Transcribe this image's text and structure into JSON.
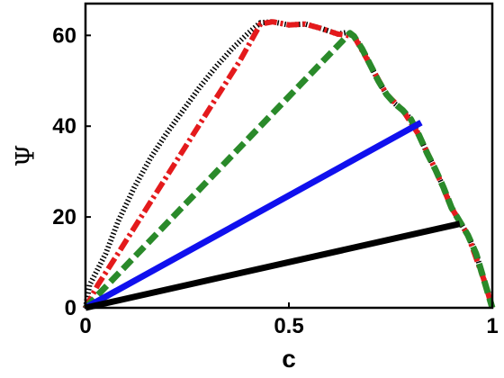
{
  "chart_data": {
    "type": "line",
    "xlabel": "c",
    "ylabel": "Ψ",
    "xlim": [
      0,
      1
    ],
    "ylim": [
      0,
      67
    ],
    "xticks": [
      0,
      0.5,
      1
    ],
    "xtick_labels": [
      "0",
      "0.5",
      "1"
    ],
    "yticks": [
      0,
      20,
      40,
      60
    ],
    "ytick_labels": [
      "0",
      "20",
      "40",
      "60"
    ],
    "grid": false,
    "legend": "none",
    "boundary": {
      "x": [
        0.0,
        0.02,
        0.05,
        0.08,
        0.12,
        0.16,
        0.2,
        0.24,
        0.28,
        0.32,
        0.36,
        0.4,
        0.43,
        0.46,
        0.5,
        0.54,
        0.58,
        0.62,
        0.64,
        0.66,
        0.68,
        0.7,
        0.72,
        0.74,
        0.76,
        0.78,
        0.8,
        0.82,
        0.84,
        0.86,
        0.88,
        0.9,
        0.92,
        0.94,
        0.96,
        0.98,
        0.995,
        1.0
      ],
      "y": [
        0.0,
        5.0,
        12.0,
        19.0,
        26.5,
        33.0,
        38.5,
        43.5,
        48.5,
        53.0,
        57.0,
        60.5,
        62.8,
        63.0,
        62.3,
        62.5,
        61.5,
        60.3,
        60.6,
        59.8,
        57.0,
        53.5,
        50.0,
        47.0,
        45.0,
        43.5,
        41.5,
        38.0,
        34.0,
        30.5,
        26.5,
        22.0,
        19.0,
        16.0,
        12.0,
        6.0,
        2.0,
        0.0
      ]
    },
    "series": [
      {
        "color": "#000000",
        "style": "dotted",
        "x": [
          0.0,
          0.01,
          0.05,
          0.08,
          0.12,
          0.16,
          0.2,
          0.24,
          0.28,
          0.32,
          0.36,
          0.4,
          0.43,
          0.46,
          0.5,
          0.54,
          0.58,
          0.62,
          0.64,
          0.66,
          0.68,
          0.7,
          0.72,
          0.74,
          0.76,
          0.78,
          0.8,
          0.82,
          0.84,
          0.86,
          0.88,
          0.9,
          0.92,
          0.94,
          0.96,
          0.98,
          0.995,
          1.0
        ],
        "y": [
          0.0,
          5.0,
          12.0,
          19.0,
          26.5,
          33.0,
          38.5,
          43.5,
          48.5,
          53.0,
          57.0,
          60.5,
          62.8,
          63.0,
          62.3,
          62.5,
          61.5,
          60.3,
          60.6,
          59.8,
          57.0,
          53.5,
          50.0,
          47.0,
          45.0,
          43.5,
          41.5,
          38.0,
          34.0,
          30.5,
          26.5,
          22.0,
          19.0,
          16.0,
          12.0,
          6.0,
          2.0,
          0.0
        ]
      },
      {
        "color": "#e41a1c",
        "style": "dashdot",
        "x": [
          0.0,
          0.03,
          0.08,
          0.14,
          0.2,
          0.26,
          0.32,
          0.38,
          0.43,
          0.46,
          0.5,
          0.54,
          0.58,
          0.62,
          0.66,
          0.7,
          0.74,
          0.78,
          0.82,
          0.86,
          0.9,
          0.94,
          0.98,
          1.0
        ],
        "y": [
          0.0,
          5.0,
          12.0,
          20.5,
          29.0,
          37.5,
          46.0,
          54.5,
          62.5,
          63.0,
          62.3,
          62.5,
          61.5,
          60.3,
          59.8,
          53.5,
          47.0,
          43.5,
          38.0,
          30.5,
          22.0,
          16.0,
          6.0,
          0.0
        ]
      },
      {
        "color": "#2a8a2a",
        "style": "dashed",
        "x": [
          0.0,
          0.65,
          0.66,
          0.68,
          0.7,
          0.72,
          0.74,
          0.76,
          0.78,
          0.8,
          0.82,
          0.84,
          0.86,
          0.88,
          0.9,
          0.92,
          0.94,
          0.96,
          0.98,
          1.0
        ],
        "y": [
          0.0,
          60.5,
          59.8,
          57.0,
          53.5,
          50.0,
          47.0,
          45.0,
          43.5,
          41.5,
          38.0,
          34.0,
          30.5,
          26.5,
          22.0,
          19.0,
          16.0,
          12.0,
          6.0,
          0.0
        ]
      },
      {
        "color": "#1010ee",
        "style": "solid",
        "x": [
          0.0,
          0.825
        ],
        "y": [
          0.0,
          40.8
        ]
      },
      {
        "color": "#000000",
        "style": "solid",
        "x": [
          0.0,
          0.92
        ],
        "y": [
          0.0,
          18.5
        ]
      }
    ]
  }
}
